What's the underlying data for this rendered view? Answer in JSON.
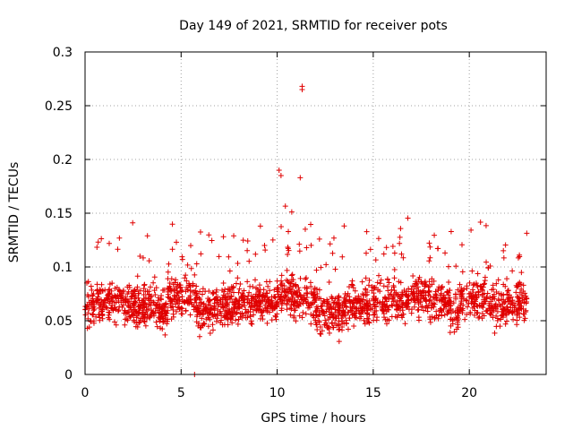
{
  "chart_data": {
    "type": "scatter",
    "title": "Day 149 of 2021, SRMTID for receiver pots",
    "xlabel": "GPS time / hours",
    "ylabel": "SRMTID / TECUs",
    "xlim": [
      0,
      24
    ],
    "ylim": [
      0,
      0.3
    ],
    "xticks": [
      0,
      5,
      10,
      15,
      20
    ],
    "yticks": [
      0,
      0.05,
      0.1,
      0.15,
      0.2,
      0.25,
      0.3
    ],
    "xtick_labels": [
      "0",
      "5",
      "10",
      "15",
      "20"
    ],
    "ytick_labels": [
      "0",
      "0.05",
      "0.1",
      "0.15",
      "0.2",
      "0.25",
      "0.3"
    ],
    "grid": true,
    "marker": "+",
    "color": "#e00000",
    "x_range_data": [
      0,
      23
    ],
    "typical_y_range": [
      0.02,
      0.13
    ],
    "notable_points": [
      {
        "x": 11.3,
        "y": 0.268
      },
      {
        "x": 11.3,
        "y": 0.265
      },
      {
        "x": 10.1,
        "y": 0.19
      },
      {
        "x": 10.2,
        "y": 0.185
      },
      {
        "x": 11.2,
        "y": 0.183
      },
      {
        "x": 5.7,
        "y": 0.0
      }
    ]
  }
}
